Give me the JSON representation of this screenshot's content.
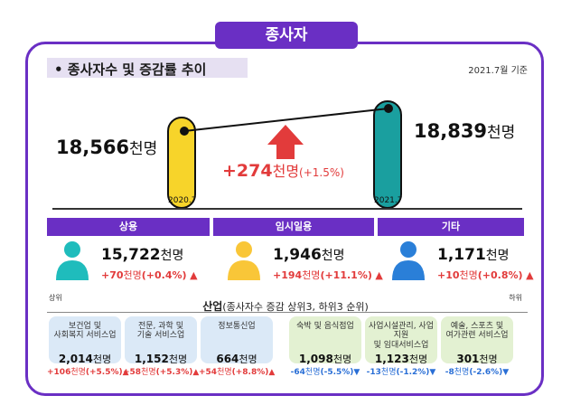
{
  "header": {
    "tag": "종사자",
    "subtitle": "• 종사자수 및 증감률 추이",
    "as_of": "2021.7월 기준"
  },
  "colors": {
    "purple": "#6a2fc4",
    "red": "#e23b3b",
    "blue": "#2a6fd6",
    "yellow": "#f7d42a",
    "teal": "#1a9f9f"
  },
  "chart_data": [
    {
      "type": "bar",
      "categories": [
        "2020.7",
        "2021.7"
      ],
      "values": [
        18566,
        18839
      ],
      "unit": "천명",
      "value_labels": [
        "18,566",
        "18,839"
      ],
      "change": {
        "value": "+274",
        "unit": "천명",
        "pct": "(+1.5%)"
      }
    },
    {
      "type": "table",
      "categories": [
        "상용",
        "임시일용",
        "기타"
      ],
      "values": [
        15722,
        1946,
        1171
      ],
      "value_labels": [
        "15,722",
        "1,946",
        "1,171"
      ],
      "changes": [
        {
          "value": "+70",
          "unit": "천명",
          "pct": "(+0.4%)",
          "dir": "up"
        },
        {
          "value": "+194",
          "unit": "천명",
          "pct": "(+11.1%)",
          "dir": "up"
        },
        {
          "value": "+10",
          "unit": "천명",
          "pct": "(+0.8%)",
          "dir": "up"
        }
      ]
    },
    {
      "type": "table",
      "title": "산업",
      "title_note": "(종사자수 증감 상위3, 하위3 순위)",
      "left_label": "상위",
      "right_label": "하위",
      "categories": [
        [
          "보건업 및",
          "사회복지 서비스업"
        ],
        [
          "전문, 과학 및",
          "기술 서비스업"
        ],
        [
          "정보통신업"
        ],
        [
          "숙박 및 음식점업"
        ],
        [
          "사업시설관리, 사업지원",
          "및 임대서비스업"
        ],
        [
          "예술, 스포츠 및",
          "여가관련 서비스업"
        ]
      ],
      "values": [
        2014,
        1152,
        664,
        1098,
        1123,
        301
      ],
      "value_labels": [
        "2,014",
        "1,152",
        "664",
        "1,098",
        "1,123",
        "301"
      ],
      "unit": "천명",
      "changes": [
        {
          "value": "+106",
          "unit": "천명",
          "pct": "(+5.5%)",
          "dir": "up"
        },
        {
          "value": "+58",
          "unit": "천명",
          "pct": "(+5.3%)",
          "dir": "up"
        },
        {
          "value": "+54",
          "unit": "천명",
          "pct": "(+8.8%)",
          "dir": "up"
        },
        {
          "value": "-64",
          "unit": "천명",
          "pct": "(-5.5%)",
          "dir": "down"
        },
        {
          "value": "-13",
          "unit": "천명",
          "pct": "(-1.2%)",
          "dir": "down"
        },
        {
          "value": "-8",
          "unit": "천명",
          "pct": "(-2.6%)",
          "dir": "down"
        }
      ]
    }
  ]
}
